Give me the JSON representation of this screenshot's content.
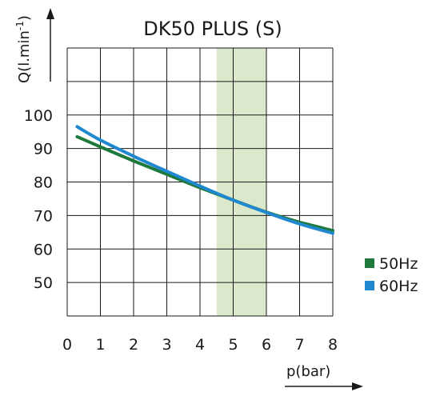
{
  "chart_data": {
    "type": "line",
    "title": "DK50 PLUS (S)",
    "xlabel": "p(bar)",
    "ylabel": "Q(l.min",
    "ylabel_sup": "-1",
    "ylabel_close": ")",
    "xlim": [
      0,
      8
    ],
    "ylim": [
      40,
      120
    ],
    "x_ticks": [
      0,
      1,
      2,
      3,
      4,
      5,
      6,
      7,
      8
    ],
    "x_tick_labels": [
      "0",
      "1",
      "2",
      "3",
      "4",
      "5",
      "6",
      "7",
      "8"
    ],
    "y_ticks": [
      50,
      60,
      70,
      80,
      90,
      100
    ],
    "y_tick_labels": [
      "50",
      "60",
      "70",
      "80",
      "90",
      "100"
    ],
    "grid": true,
    "highlight_band": {
      "x_from": 4.5,
      "x_to": 6,
      "color": "#dbe8cc"
    },
    "legend": "right",
    "series": [
      {
        "name": "50Hz",
        "color": "#1e7a3c",
        "x": [
          0.3,
          1,
          2,
          3,
          4,
          5,
          6,
          7,
          8
        ],
        "y": [
          93.5,
          90.5,
          86.3,
          82.3,
          78.3,
          74.6,
          71.0,
          68.0,
          65.5
        ]
      },
      {
        "name": "60Hz",
        "color": "#1f88cf",
        "x": [
          0.3,
          1,
          2,
          3,
          4,
          5,
          6,
          7,
          8
        ],
        "y": [
          96.5,
          92.5,
          87.7,
          83.2,
          78.8,
          74.6,
          70.9,
          67.5,
          64.7
        ]
      }
    ]
  }
}
